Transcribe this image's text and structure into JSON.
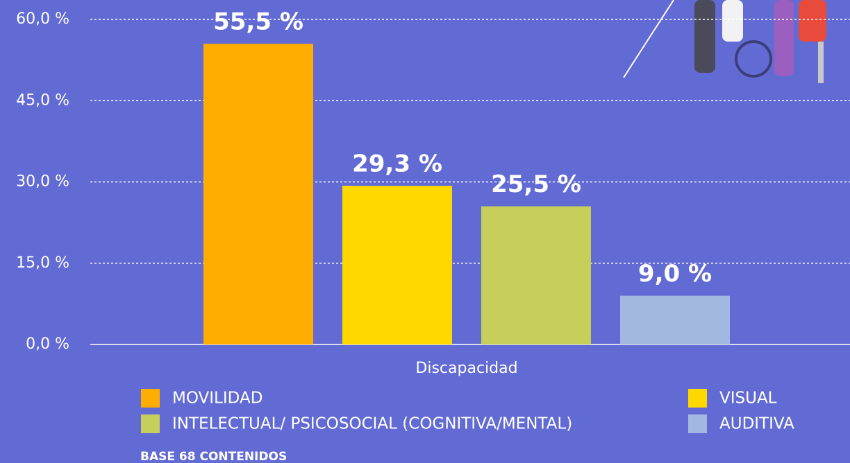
{
  "chart_data": {
    "type": "bar",
    "categories": [
      "Discapacidad"
    ],
    "series": [
      {
        "name": "MOVILIDAD",
        "color": "#ffad00",
        "values": [
          55.5
        ],
        "value_labels": [
          "55,5 %"
        ]
      },
      {
        "name": "VISUAL",
        "color": "#ffd800",
        "values": [
          29.3
        ],
        "value_labels": [
          "29,3 %"
        ]
      },
      {
        "name": "INTELECTUAL/ PSICOSOCIAL (COGNITIVA/MENTAL)",
        "color": "#c5cf5a",
        "values": [
          25.5
        ],
        "value_labels": [
          "25,5 %"
        ]
      },
      {
        "name": "AUDITIVA",
        "color": "#a3b8e0",
        "values": [
          9.0
        ],
        "value_labels": [
          "9,0 %"
        ]
      }
    ],
    "ylim": [
      0,
      60
    ],
    "yticks": [
      {
        "value": 0,
        "label": "0,0 %"
      },
      {
        "value": 15,
        "label": "15,0 %"
      },
      {
        "value": 30,
        "label": "30,0 %"
      },
      {
        "value": 45,
        "label": "45,0 %"
      },
      {
        "value": 60,
        "label": "60,0 %"
      }
    ],
    "grid": true,
    "footnote": "BASE 68 CONTENIDOS"
  }
}
